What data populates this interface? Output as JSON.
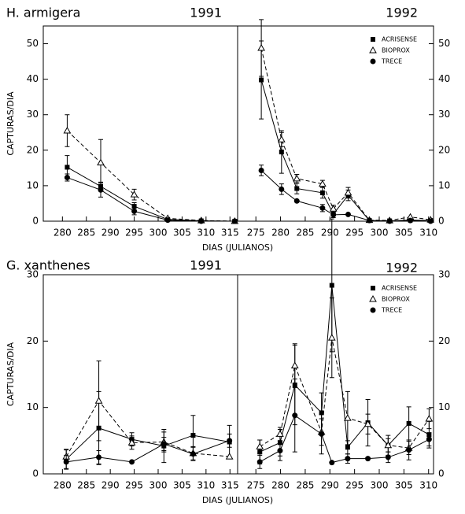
{
  "chart_data": [
    {
      "type": "line",
      "title": "H. armigera",
      "year": "1991",
      "ylabel": "CAPTURAS/DIA",
      "xlabel": "DIAS (JULIANOS)",
      "xlim": [
        276,
        316.6
      ],
      "xticks": [
        280,
        285,
        290,
        295,
        300,
        305,
        310,
        315
      ],
      "ylim": [
        0,
        55
      ],
      "yticks": [
        0,
        10,
        20,
        30,
        40,
        50
      ],
      "yaxis_side": "left",
      "x": [
        281,
        288,
        295,
        302,
        309,
        316
      ],
      "series": [
        {
          "marker": "square",
          "dashed": false,
          "color": "#000000",
          "values": [
            15.2,
            9.8,
            4.2,
            0.5,
            0.1,
            0
          ],
          "errors": [
            3.3,
            1.2,
            1,
            null,
            null,
            null
          ]
        },
        {
          "marker": "triangle",
          "dashed": true,
          "color": "#000000",
          "values": [
            25.5,
            16.5,
            7.5,
            0.8,
            0.2,
            0
          ],
          "errors": [
            4.5,
            6.5,
            1.5,
            null,
            null,
            null
          ]
        },
        {
          "marker": "circle",
          "dashed": false,
          "color": "#000000",
          "values": [
            12.3,
            8.8,
            2.8,
            0.3,
            0,
            0
          ],
          "errors": [
            1,
            2,
            1,
            null,
            null,
            null
          ]
        }
      ]
    },
    {
      "type": "line",
      "year": "1992",
      "xlim": [
        271.3,
        311
      ],
      "xticks": [
        275,
        280,
        285,
        290,
        295,
        300,
        305,
        310
      ],
      "ylim": [
        0,
        55
      ],
      "yticks": [
        0,
        10,
        20,
        30,
        40,
        50
      ],
      "yaxis_side": "right",
      "legend": "upper right",
      "x": [
        276.1,
        280.2,
        283.3,
        288.5,
        290.7,
        293.7,
        298,
        302.1,
        306.3,
        310.4
      ],
      "series": [
        {
          "name": "ACRISENSE",
          "marker": "square",
          "dashed": false,
          "color": "#000000",
          "values": [
            39.8,
            19.5,
            9.2,
            8,
            2,
            7.3,
            0.2,
            0.1,
            0.3,
            0.2
          ],
          "errors": [
            11,
            6,
            1.5,
            1.5,
            1,
            1.5,
            null,
            null,
            null,
            null
          ]
        },
        {
          "name": "BIOPROX",
          "marker": "triangle",
          "dashed": true,
          "color": "#000000",
          "values": [
            48.8,
            23,
            12,
            10.5,
            3.5,
            8,
            0.3,
            0.2,
            1.2,
            0.4
          ],
          "errors": [
            8,
            2,
            1.2,
            1,
            1,
            1.5,
            null,
            null,
            null,
            null
          ]
        },
        {
          "name": "TRECE",
          "marker": "circle",
          "dashed": false,
          "color": "#000000",
          "values": [
            14.3,
            9,
            5.7,
            3.7,
            1.8,
            1.9,
            0.2,
            0,
            0.2,
            0
          ],
          "errors": [
            1.5,
            1.5,
            null,
            1,
            null,
            null,
            null,
            null,
            null,
            null
          ]
        }
      ]
    },
    {
      "type": "line",
      "title": "G. xanthenes",
      "year": "1991",
      "ylabel": "CAPTURAS/DIA",
      "xlabel": "DIAS (JULIANOS)",
      "xlim": [
        276,
        316.6
      ],
      "xticks": [
        280,
        285,
        290,
        295,
        300,
        305,
        310,
        315
      ],
      "ylim": [
        0,
        30
      ],
      "yticks": [
        0,
        10,
        20,
        30
      ],
      "yaxis_side": "left",
      "x": [
        280.8,
        287.6,
        294.5,
        301.2,
        307.3,
        314.9
      ],
      "series": [
        {
          "marker": "square",
          "dashed": false,
          "color": "#000000",
          "values": [
            2.2,
            6.9,
            5.2,
            4.2,
            5.8,
            4.8
          ],
          "errors": [
            1.5,
            5.5,
            1,
            2.5,
            3,
            2.5
          ]
        },
        {
          "marker": "triangle",
          "dashed": true,
          "color": "#000000",
          "values": [
            2.6,
            11,
            4.7,
            4.8,
            3.1,
            2.6
          ],
          "errors": [
            1,
            6,
            1,
            1.5,
            1,
            null
          ]
        },
        {
          "marker": "circle",
          "dashed": false,
          "color": "#000000",
          "values": [
            1.8,
            2.5,
            1.8,
            4.5,
            3,
            5
          ],
          "errors": [
            1,
            1,
            null,
            1,
            1,
            1
          ]
        }
      ]
    },
    {
      "type": "line",
      "year": "1992",
      "xlim": [
        271.3,
        311
      ],
      "xticks": [
        275,
        280,
        285,
        290,
        295,
        300,
        305,
        310
      ],
      "ylim": [
        0,
        30
      ],
      "yticks": [
        0,
        10,
        20,
        30
      ],
      "yaxis_side": "right",
      "legend": "upper right",
      "x": [
        275.8,
        279.9,
        282.9,
        288.3,
        290.4,
        293.6,
        297.7,
        301.8,
        306,
        310.1
      ],
      "series": [
        {
          "name": "ACRISENSE",
          "marker": "square",
          "dashed": false,
          "color": "#000000",
          "values": [
            3.3,
            4.7,
            13.4,
            9.2,
            28.4,
            4,
            7.7,
            4.3,
            7.6,
            5.9
          ],
          "errors": [
            1.8,
            2,
            6,
            3,
            10,
            1,
            3.5,
            1.5,
            2.5,
            2
          ]
        },
        {
          "name": "BIOPROX",
          "marker": "triangle",
          "dashed": true,
          "color": "#000000",
          "values": [
            4.1,
            6,
            16.3,
            6.3,
            20.5,
            8.4,
            7.5,
            4.3,
            3.9,
            8.3
          ],
          "errors": [
            1,
            1,
            3.3,
            2,
            6,
            4,
            1.5,
            1,
            1,
            1.5
          ]
        },
        {
          "name": "TRECE",
          "marker": "circle",
          "dashed": false,
          "color": "#000000",
          "values": [
            1.8,
            3.5,
            8.8,
            6,
            1.7,
            2.3,
            2.3,
            2.5,
            3.6,
            5.2
          ],
          "errors": [
            1,
            1.5,
            5.5,
            3,
            null,
            0.7,
            null,
            0.8,
            1.5,
            1
          ]
        }
      ]
    }
  ]
}
